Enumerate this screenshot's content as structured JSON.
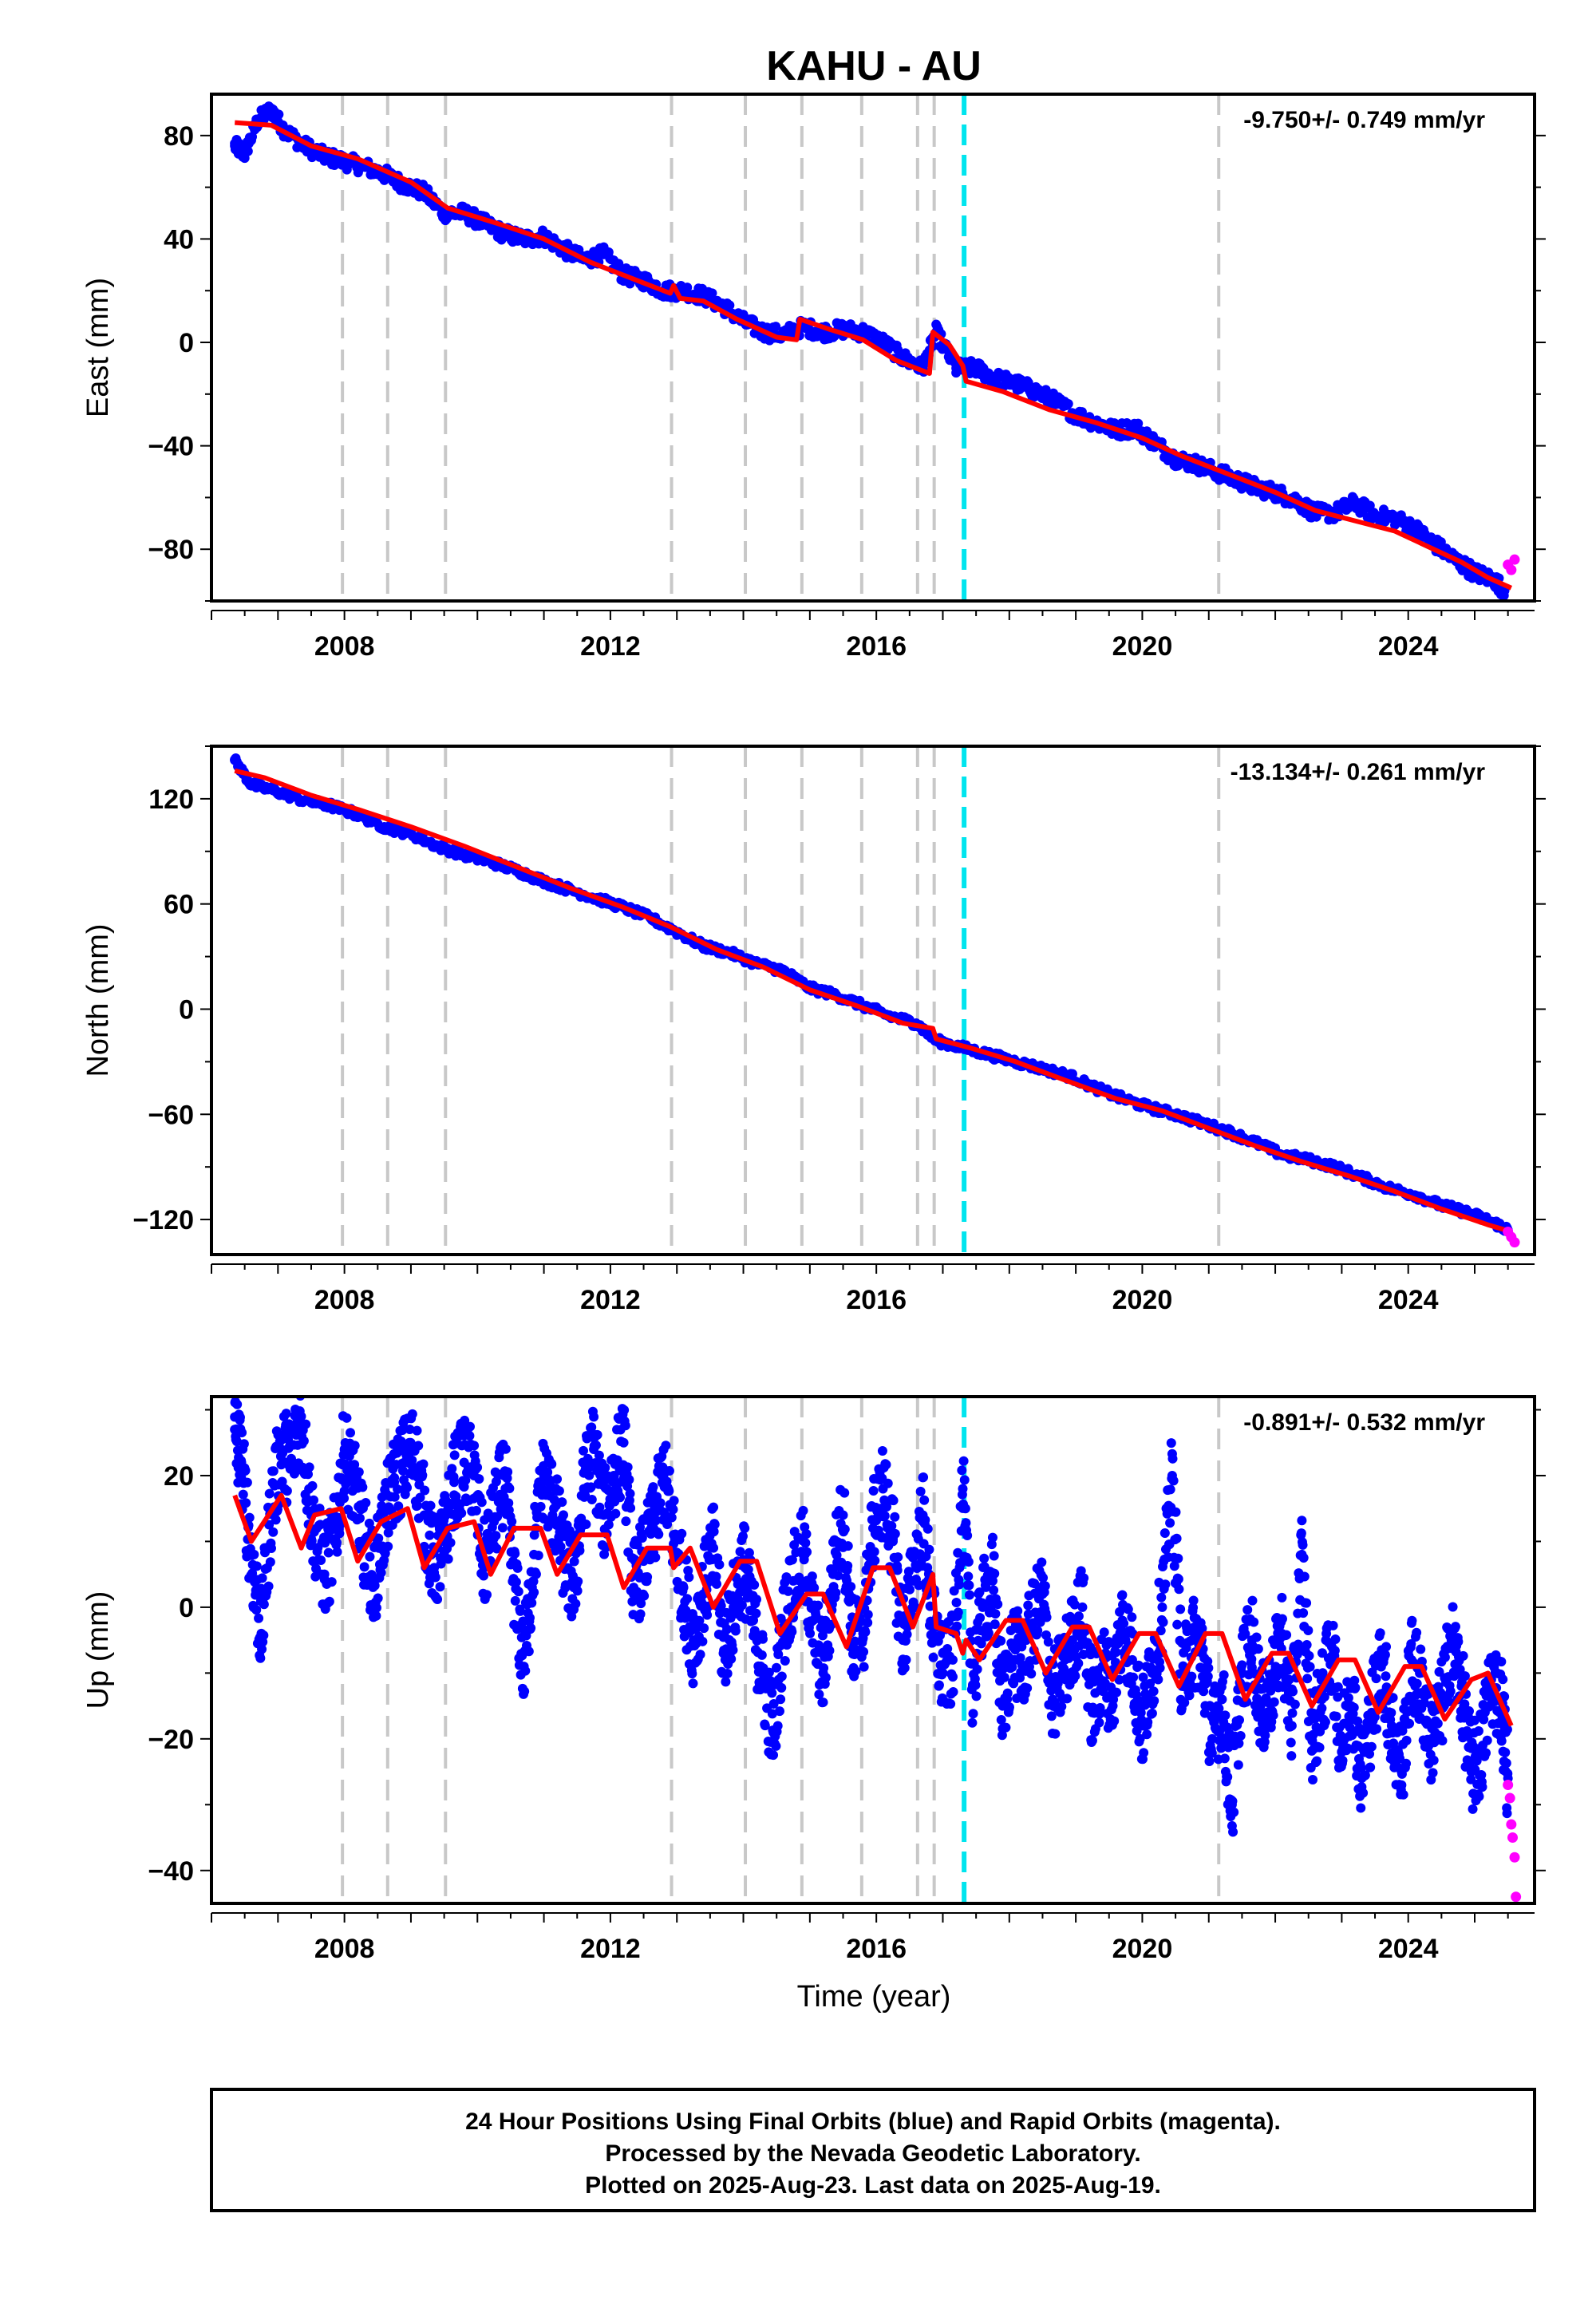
{
  "station_title": "KAHU - AU",
  "x_axis": {
    "label": "Time (year)",
    "range": [
      2006.0,
      2025.9
    ],
    "major_ticks": [
      2008,
      2012,
      2016,
      2020,
      2024
    ],
    "minor_step": 0.5
  },
  "colors": {
    "final_orbits": "#0000ff",
    "rapid_orbits": "#ff00ff",
    "model_fit": "#ff0000",
    "equipment_change": "#c8c8c8",
    "earthquake_event": "#00e5ee",
    "frame": "#000000"
  },
  "chart_data": [
    {
      "type": "scatter",
      "component": "east",
      "ylabel": "East (mm)",
      "ylim": [
        -100,
        96
      ],
      "y_ticks": [
        -80,
        -40,
        0,
        40,
        80
      ],
      "y_minor_step": 20,
      "rate_text": "-9.750+/- 0.749 mm/yr",
      "rate_mm_per_yr": -9.75,
      "rate_sigma": 0.749,
      "rate_position": "top-right",
      "model_fit": {
        "x": [
          2006.35,
          2006.9,
          2007.5,
          2008.2,
          2009.0,
          2009.55,
          2010.3,
          2011.0,
          2011.7,
          2012.4,
          2012.9,
          2012.95,
          2013.05,
          2013.4,
          2013.9,
          2014.5,
          2014.8,
          2014.85,
          2015.3,
          2015.8,
          2016.3,
          2016.8,
          2016.85,
          2017.1,
          2017.3,
          2017.35,
          2017.9,
          2018.6,
          2019.3,
          2020.0,
          2020.6,
          2021.1,
          2021.5,
          2022.0,
          2022.6,
          2023.2,
          2023.8,
          2024.3,
          2024.8,
          2025.2,
          2025.55
        ],
        "y": [
          85,
          84,
          76,
          71,
          62,
          52,
          46,
          40,
          31,
          24,
          19,
          22,
          17,
          16,
          9,
          2,
          1,
          9,
          5,
          1,
          -7,
          -12,
          4,
          -1,
          -9,
          -15,
          -19,
          -26,
          -31,
          -37,
          -44,
          -49,
          -53,
          -58,
          -65,
          -69,
          -73,
          -79,
          -85,
          -91,
          -95
        ]
      },
      "final_orbits": {
        "x": [
          2006.35,
          2006.5,
          2006.7,
          2006.9,
          2007.1,
          2007.4,
          2007.7,
          2008.0,
          2008.3,
          2008.6,
          2008.9,
          2009.2,
          2009.5,
          2009.8,
          2010.1,
          2010.4,
          2010.7,
          2011.0,
          2011.3,
          2011.6,
          2011.9,
          2012.2,
          2012.5,
          2012.8,
          2013.1,
          2013.4,
          2013.7,
          2014.0,
          2014.3,
          2014.6,
          2014.9,
          2015.2,
          2015.5,
          2015.8,
          2016.1,
          2016.4,
          2016.7,
          2016.9,
          2017.2,
          2017.5,
          2017.8,
          2018.1,
          2018.4,
          2018.7,
          2019.0,
          2019.3,
          2019.6,
          2019.9,
          2020.2,
          2020.5,
          2020.8,
          2021.1,
          2021.4,
          2021.7,
          2022.0,
          2022.3,
          2022.6,
          2022.9,
          2023.2,
          2023.5,
          2023.8,
          2024.1,
          2024.4,
          2024.7,
          2025.0,
          2025.3,
          2025.45
        ],
        "y": [
          76,
          73,
          86,
          90,
          82,
          76,
          72,
          70,
          68,
          65,
          61,
          58,
          50,
          50,
          46,
          42,
          40,
          41,
          36,
          32,
          34,
          26,
          24,
          20,
          20,
          18,
          14,
          8,
          4,
          3,
          6,
          4,
          5,
          4,
          0,
          -6,
          -10,
          4,
          -10,
          -10,
          -14,
          -16,
          -19,
          -23,
          -28,
          -31,
          -34,
          -33,
          -39,
          -45,
          -47,
          -50,
          -53,
          -56,
          -58,
          -61,
          -66,
          -66,
          -62,
          -67,
          -68,
          -72,
          -78,
          -84,
          -89,
          -92,
          -96
        ]
      },
      "rapid_orbits": {
        "x": [
          2025.5,
          2025.55,
          2025.6
        ],
        "y": [
          -86,
          -88,
          -84
        ]
      }
    },
    {
      "type": "scatter",
      "component": "north",
      "ylabel": "North (mm)",
      "ylim": [
        -140,
        150
      ],
      "y_ticks": [
        -120,
        -60,
        0,
        60,
        120
      ],
      "y_minor_step": 30,
      "rate_text": "-13.134+/- 0.261 mm/yr",
      "rate_mm_per_yr": -13.134,
      "rate_sigma": 0.261,
      "rate_position": "top-right",
      "model_fit": {
        "x": [
          2006.35,
          2006.8,
          2007.5,
          2008.2,
          2009.0,
          2009.8,
          2010.6,
          2011.4,
          2012.2,
          2012.9,
          2013.6,
          2014.3,
          2015.0,
          2015.7,
          2016.4,
          2016.85,
          2016.9,
          2017.4,
          2018.1,
          2018.8,
          2019.6,
          2020.3,
          2021.0,
          2021.7,
          2022.4,
          2023.1,
          2023.8,
          2024.5,
          2025.2,
          2025.55
        ],
        "y": [
          136,
          132,
          122,
          114,
          104,
          93,
          81,
          69,
          58,
          47,
          34,
          24,
          11,
          2,
          -8,
          -11,
          -17,
          -22,
          -30,
          -40,
          -51,
          -58,
          -68,
          -78,
          -87,
          -95,
          -104,
          -114,
          -123,
          -127
        ]
      },
      "final_orbits": {
        "x": [
          2006.35,
          2006.6,
          2007.0,
          2007.4,
          2007.8,
          2008.2,
          2008.6,
          2009.0,
          2009.4,
          2009.8,
          2010.2,
          2010.6,
          2011.0,
          2011.4,
          2011.8,
          2012.2,
          2012.6,
          2013.0,
          2013.4,
          2013.8,
          2014.2,
          2014.6,
          2015.0,
          2015.4,
          2015.8,
          2016.2,
          2016.6,
          2016.9,
          2017.3,
          2017.7,
          2018.1,
          2018.5,
          2018.9,
          2019.3,
          2019.7,
          2020.1,
          2020.5,
          2020.9,
          2021.3,
          2021.7,
          2022.1,
          2022.5,
          2022.9,
          2023.3,
          2023.7,
          2024.1,
          2024.5,
          2024.9,
          2025.3,
          2025.5
        ],
        "y": [
          142,
          128,
          124,
          119,
          116,
          111,
          104,
          100,
          93,
          88,
          84,
          79,
          73,
          68,
          63,
          58,
          52,
          44,
          36,
          32,
          26,
          22,
          12,
          8,
          2,
          -4,
          -8,
          -18,
          -22,
          -26,
          -30,
          -34,
          -38,
          -45,
          -51,
          -56,
          -60,
          -65,
          -70,
          -76,
          -83,
          -86,
          -90,
          -96,
          -102,
          -106,
          -112,
          -116,
          -122,
          -126
        ]
      },
      "rapid_orbits": {
        "x": [
          2025.5,
          2025.55,
          2025.6
        ],
        "y": [
          -127,
          -130,
          -133
        ]
      }
    },
    {
      "type": "scatter",
      "component": "up",
      "ylabel": "Up (mm)",
      "ylim": [
        -45,
        32
      ],
      "y_ticks": [
        -40,
        -20,
        0,
        20
      ],
      "y_minor_step": 10,
      "rate_text": "-0.891+/- 0.532 mm/yr",
      "rate_mm_per_yr": -0.891,
      "rate_sigma": 0.532,
      "rate_position": "top-right",
      "model_fit": {
        "x": [
          2006.35,
          2006.6,
          2007.05,
          2007.35,
          2007.55,
          2007.95,
          2008.2,
          2008.55,
          2008.95,
          2009.2,
          2009.55,
          2009.95,
          2010.2,
          2010.55,
          2010.95,
          2011.2,
          2011.55,
          2011.95,
          2012.2,
          2012.55,
          2012.9,
          2012.95,
          2013.2,
          2013.55,
          2013.95,
          2014.2,
          2014.55,
          2014.95,
          2015.2,
          2015.55,
          2015.95,
          2016.2,
          2016.55,
          2016.85,
          2016.9,
          2017.2,
          2017.3,
          2017.35,
          2017.55,
          2017.95,
          2018.2,
          2018.55,
          2018.95,
          2019.2,
          2019.55,
          2019.95,
          2020.2,
          2020.55,
          2020.95,
          2021.2,
          2021.55,
          2021.95,
          2022.2,
          2022.55,
          2022.95,
          2023.2,
          2023.55,
          2023.95,
          2024.2,
          2024.55,
          2024.95,
          2025.2,
          2025.55
        ],
        "y": [
          17,
          10,
          17,
          9,
          14,
          15,
          7,
          13,
          15,
          6,
          12,
          13,
          5,
          12,
          12,
          5,
          11,
          11,
          3,
          9,
          9,
          6,
          9,
          0,
          7,
          7,
          -4,
          2,
          2,
          -6,
          6,
          6,
          -3,
          5,
          -3,
          -4,
          -7,
          -5,
          -8,
          -2,
          -2,
          -10,
          -3,
          -3,
          -11,
          -4,
          -4,
          -12,
          -4,
          -4,
          -14,
          -7,
          -7,
          -15,
          -8,
          -8,
          -16,
          -9,
          -9,
          -17,
          -11,
          -10,
          -18
        ]
      },
      "final_orbits": {
        "x": [
          2006.35,
          2006.45,
          2006.6,
          2006.75,
          2006.9,
          2007.05,
          2007.2,
          2007.35,
          2007.5,
          2007.7,
          2007.85,
          2008.0,
          2008.15,
          2008.3,
          2008.45,
          2008.6,
          2008.75,
          2008.9,
          2009.05,
          2009.2,
          2009.35,
          2009.5,
          2009.65,
          2009.8,
          2009.95,
          2010.1,
          2010.25,
          2010.4,
          2010.55,
          2010.7,
          2010.85,
          2011.0,
          2011.15,
          2011.3,
          2011.45,
          2011.6,
          2011.75,
          2011.9,
          2012.05,
          2012.2,
          2012.35,
          2012.5,
          2012.65,
          2012.8,
          2012.95,
          2013.1,
          2013.25,
          2013.4,
          2013.55,
          2013.7,
          2013.85,
          2014.0,
          2014.15,
          2014.3,
          2014.45,
          2014.6,
          2014.75,
          2014.9,
          2015.05,
          2015.2,
          2015.35,
          2015.5,
          2015.65,
          2015.8,
          2015.95,
          2016.1,
          2016.25,
          2016.4,
          2016.55,
          2016.7,
          2016.85,
          2017.0,
          2017.15,
          2017.3,
          2017.45,
          2017.6,
          2017.75,
          2017.9,
          2018.05,
          2018.2,
          2018.35,
          2018.5,
          2018.65,
          2018.8,
          2018.95,
          2019.1,
          2019.25,
          2019.4,
          2019.55,
          2019.7,
          2019.85,
          2020.0,
          2020.15,
          2020.3,
          2020.45,
          2020.6,
          2020.75,
          2020.9,
          2021.05,
          2021.2,
          2021.35,
          2021.5,
          2021.65,
          2021.8,
          2021.95,
          2022.1,
          2022.25,
          2022.4,
          2022.55,
          2022.7,
          2022.85,
          2023.0,
          2023.15,
          2023.3,
          2023.45,
          2023.6,
          2023.75,
          2023.9,
          2024.05,
          2024.2,
          2024.35,
          2024.5,
          2024.65,
          2024.8,
          2024.95,
          2025.1,
          2025.25,
          2025.4,
          2025.5
        ],
        "y": [
          27,
          22,
          8,
          -4,
          15,
          24,
          22,
          29,
          14,
          5,
          10,
          24,
          18,
          10,
          4,
          13,
          19,
          22,
          24,
          14,
          6,
          10,
          19,
          22,
          20,
          6,
          13,
          20,
          4,
          -9,
          8,
          20,
          15,
          8,
          3,
          18,
          24,
          14,
          20,
          25,
          3,
          7,
          12,
          20,
          11,
          3,
          -5,
          2,
          9,
          -7,
          0,
          7,
          -2,
          -11,
          -19,
          -3,
          4,
          8,
          -2,
          -10,
          5,
          14,
          -6,
          -4,
          12,
          18,
          10,
          -5,
          4,
          14,
          -3,
          -10,
          -8,
          18,
          -12,
          0,
          4,
          -15,
          -6,
          -9,
          -3,
          2,
          -14,
          -10,
          -5,
          0,
          -16,
          -9,
          -13,
          -2,
          -8,
          -18,
          -10,
          0,
          20,
          -12,
          -5,
          -7,
          -20,
          -14,
          -30,
          -10,
          -5,
          -16,
          -12,
          -4,
          -18,
          8,
          -20,
          -14,
          -6,
          -22,
          -12,
          -26,
          -16,
          -8,
          -18,
          -25,
          -8,
          -13,
          -20,
          -15,
          -5,
          -12,
          -25,
          -22,
          -11,
          -14,
          -26
        ]
      },
      "rapid_orbits": {
        "x": [
          2025.5,
          2025.53,
          2025.55,
          2025.57,
          2025.6,
          2025.62
        ],
        "y": [
          -27,
          -29,
          -33,
          -35,
          -38,
          -44
        ]
      }
    }
  ],
  "events": {
    "equipment_changes": [
      2007.97,
      2008.65,
      2009.52,
      2012.92,
      2014.03,
      2014.88,
      2015.78,
      2016.62,
      2016.87,
      2021.15
    ],
    "earthquakes": [
      2017.32
    ]
  },
  "footer": {
    "line1": "24 Hour Positions Using Final Orbits (blue) and Rapid Orbits (magenta).",
    "line2": "Processed by the Nevada Geodetic Laboratory.",
    "line3": "Plotted on 2025-Aug-23. Last data on 2025-Aug-19."
  }
}
